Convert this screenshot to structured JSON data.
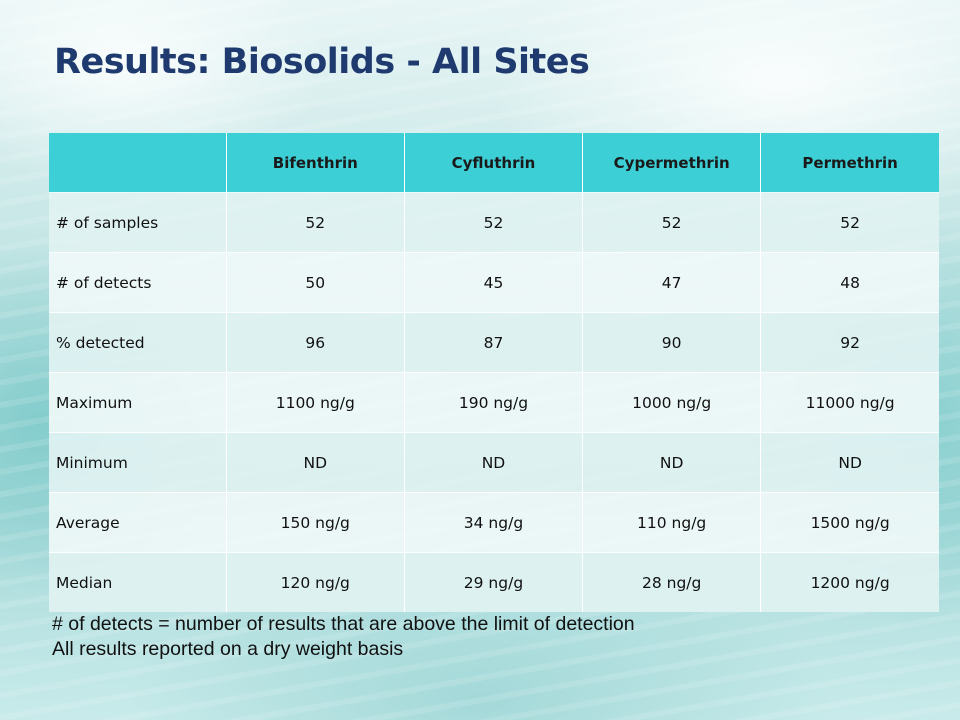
{
  "slide": {
    "title": "Results: Biosolids - All Sites"
  },
  "table": {
    "corner": "",
    "headers": [
      "Bifenthrin",
      "Cyfluthrin",
      "Cypermethrin",
      "Permethrin"
    ],
    "rows": [
      {
        "label": "# of samples",
        "values": [
          "52",
          "52",
          "52",
          "52"
        ]
      },
      {
        "label": "# of detects",
        "values": [
          "50",
          "45",
          "47",
          "48"
        ]
      },
      {
        "label": "% detected",
        "values": [
          "96",
          "87",
          "90",
          "92"
        ]
      },
      {
        "label": "Maximum",
        "values": [
          "1100 ng/g",
          "190 ng/g",
          "1000 ng/g",
          "11000 ng/g"
        ]
      },
      {
        "label": "Minimum",
        "values": [
          "ND",
          "ND",
          "ND",
          "ND"
        ]
      },
      {
        "label": "Average",
        "values": [
          "150 ng/g",
          "34 ng/g",
          "110 ng/g",
          "1500 ng/g"
        ]
      },
      {
        "label": "Median",
        "values": [
          "120 ng/g",
          "29 ng/g",
          "28 ng/g",
          "1200 ng/g"
        ]
      }
    ]
  },
  "notes": [
    "# of detects = number of results that are above the limit of detection",
    "All results reported on a dry weight basis"
  ],
  "colors": {
    "title": "#1f3a6e",
    "header_fill": "#3ccfd6",
    "background_tint": "#cfe9e9"
  }
}
